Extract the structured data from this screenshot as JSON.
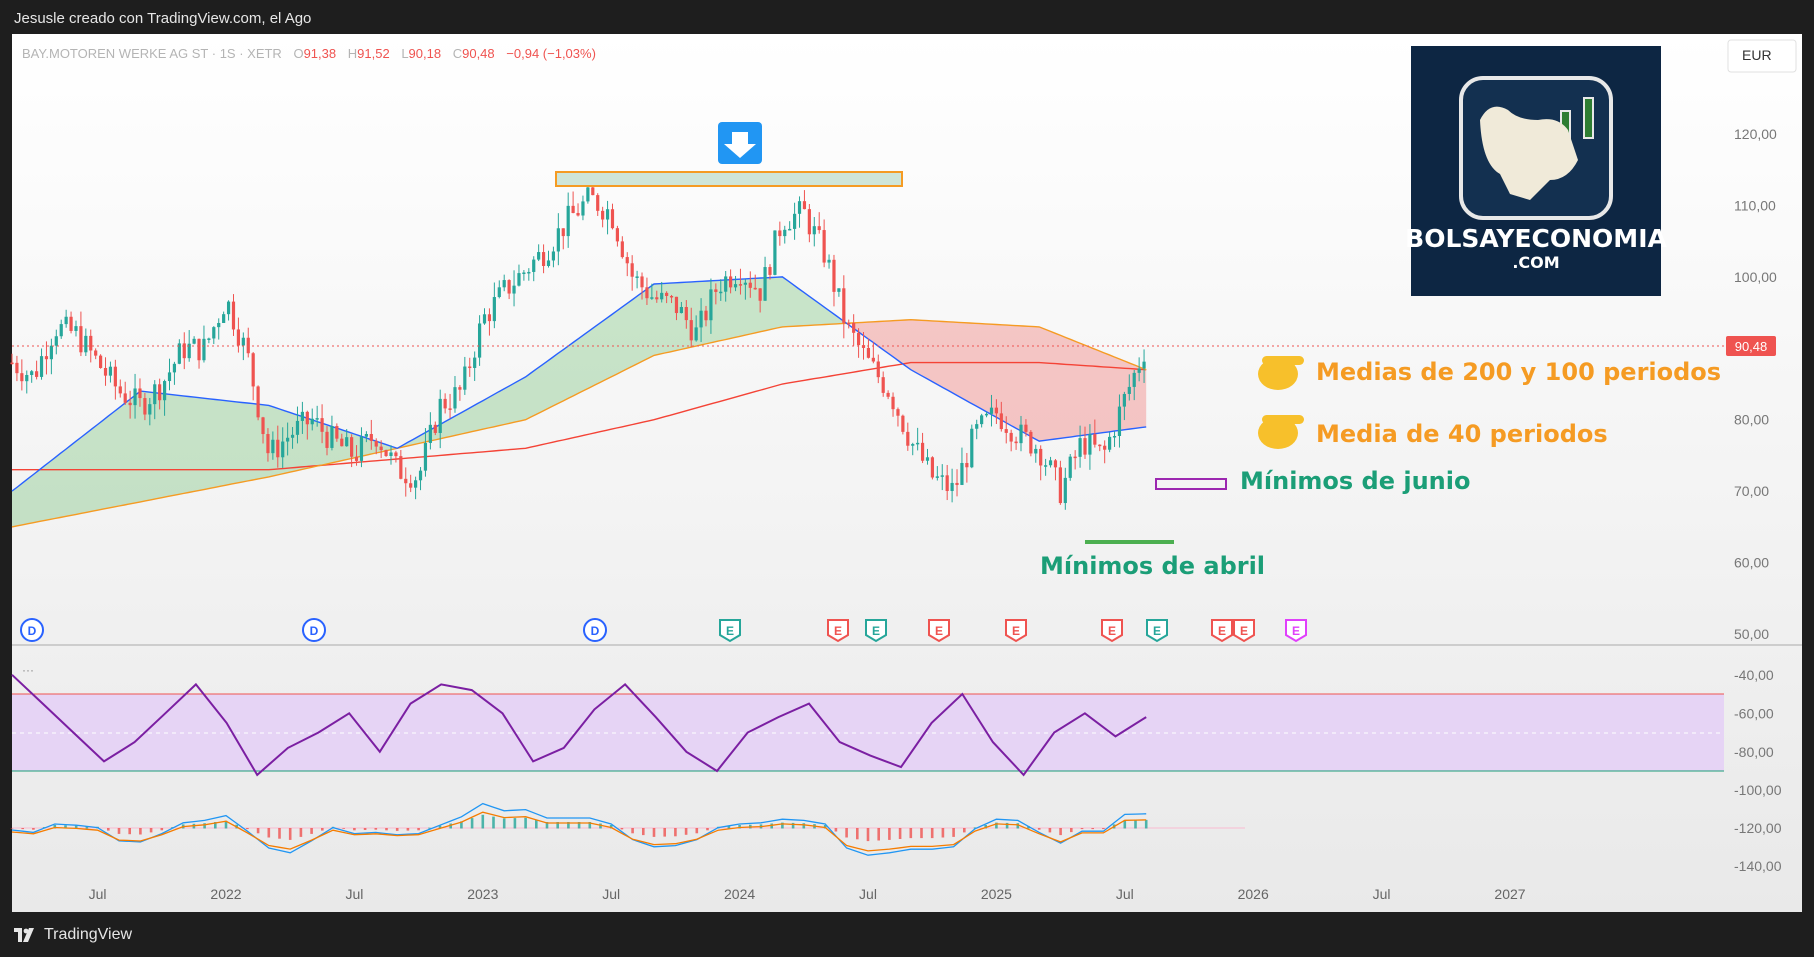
{
  "header": {
    "attribution": "Jesusle creado con TradingView.com, el Ago"
  },
  "footer": {
    "brand": "TradingView"
  },
  "instrument": {
    "name": "BAY.MOTOREN WERKE AG ST · 1S · XETR",
    "o_label": "O",
    "o": "91,38",
    "h_label": "H",
    "h": "91,52",
    "l_label": "L",
    "l": "90,18",
    "c_label": "C",
    "c": "90,48",
    "change": "−0,94 (−1,03%)",
    "currency": "EUR",
    "last_price": "90,48"
  },
  "logo": {
    "line1": "BOLSAYECONOMIA",
    "line2": ".COM"
  },
  "annotations": {
    "ma_long": "Medias de 200 y 100 periodos",
    "ma_short": "Media de 40 periodos",
    "june_lows": "Mínimos de junio",
    "april_lows": "Mínimos de abril"
  },
  "event_badges": [
    "D",
    "D",
    "D",
    "E",
    "E",
    "E",
    "E",
    "E",
    "E",
    "E",
    "E",
    "E",
    "E"
  ],
  "rsi_panel": {
    "dots": "···"
  },
  "colors": {
    "up": "#26a69a",
    "down": "#ef5350",
    "ma40": "#2962ff",
    "ma100": "#f59b23",
    "ma200": "#f44336",
    "rsi": "#7b1fa2",
    "rsi_band": "#e6d4f5",
    "green_note": "#1b9e77",
    "orange_note": "#f59b23"
  },
  "chart_data": [
    {
      "type": "candlestick",
      "title": "BAY.MOTOREN WERKE AG ST · 1S · XETR",
      "x_tick_labels": [
        "Jul",
        "2022",
        "Jul",
        "2023",
        "Jul",
        "2024",
        "Jul",
        "2025",
        "Jul",
        "2026",
        "Jul",
        "2027"
      ],
      "y_tick_labels": [
        "120,00",
        "110,00",
        "100,00",
        "90,00",
        "80,00",
        "70,00",
        "60,00",
        "50,00"
      ],
      "ylim": [
        50,
        127
      ],
      "x_range": [
        "2021-03",
        "2027-11"
      ],
      "close_path": [
        [
          "2021-03",
          88
        ],
        [
          "2021-04",
          86
        ],
        [
          "2021-05",
          93
        ],
        [
          "2021-06",
          92
        ],
        [
          "2021-07",
          88
        ],
        [
          "2021-08",
          84
        ],
        [
          "2021-09",
          82
        ],
        [
          "2021-10",
          85
        ],
        [
          "2021-11",
          90
        ],
        [
          "2021-12",
          90
        ],
        [
          "2022-01",
          97
        ],
        [
          "2022-02",
          89
        ],
        [
          "2022-03",
          75
        ],
        [
          "2022-04",
          78
        ],
        [
          "2022-05",
          80
        ],
        [
          "2022-06",
          77
        ],
        [
          "2022-07",
          75
        ],
        [
          "2022-08",
          78
        ],
        [
          "2022-09",
          73
        ],
        [
          "2022-10",
          72
        ],
        [
          "2022-11",
          82
        ],
        [
          "2022-12",
          84
        ],
        [
          "2023-01",
          94
        ],
        [
          "2023-02",
          98
        ],
        [
          "2023-03",
          101
        ],
        [
          "2023-04",
          104
        ],
        [
          "2023-05",
          108
        ],
        [
          "2023-06",
          111
        ],
        [
          "2023-07",
          109
        ],
        [
          "2023-08",
          100
        ],
        [
          "2023-09",
          97
        ],
        [
          "2023-10",
          96
        ],
        [
          "2023-11",
          92
        ],
        [
          "2023-12",
          99
        ],
        [
          "2024-01",
          101
        ],
        [
          "2024-02",
          98
        ],
        [
          "2024-03",
          108
        ],
        [
          "2024-04",
          109
        ],
        [
          "2024-05",
          103
        ],
        [
          "2024-06",
          93
        ],
        [
          "2024-07",
          88
        ],
        [
          "2024-08",
          84
        ],
        [
          "2024-09",
          77
        ],
        [
          "2024-10",
          72
        ],
        [
          "2024-11",
          70
        ],
        [
          "2024-12",
          78
        ],
        [
          "2025-01",
          81
        ],
        [
          "2025-02",
          78
        ],
        [
          "2025-03",
          76
        ],
        [
          "2025-04",
          70
        ],
        [
          "2025-05",
          77
        ],
        [
          "2025-06",
          75
        ],
        [
          "2025-07",
          83
        ],
        [
          "2025-08",
          90.48
        ]
      ],
      "ma_40": [
        [
          "2021-03",
          70
        ],
        [
          "2021-09",
          84
        ],
        [
          "2022-03",
          82
        ],
        [
          "2022-09",
          76
        ],
        [
          "2023-03",
          86
        ],
        [
          "2023-09",
          99
        ],
        [
          "2024-03",
          100
        ],
        [
          "2024-09",
          87
        ],
        [
          "2025-03",
          77
        ],
        [
          "2025-08",
          79
        ]
      ],
      "ma_100": [
        [
          "2021-03",
          65
        ],
        [
          "2022-03",
          72
        ],
        [
          "2023-03",
          80
        ],
        [
          "2023-09",
          89
        ],
        [
          "2024-03",
          93
        ],
        [
          "2024-09",
          94
        ],
        [
          "2025-03",
          93
        ],
        [
          "2025-08",
          87
        ]
      ],
      "ma_200": [
        [
          "2021-03",
          73
        ],
        [
          "2022-03",
          73
        ],
        [
          "2023-03",
          76
        ],
        [
          "2023-09",
          80
        ],
        [
          "2024-03",
          85
        ],
        [
          "2024-09",
          88
        ],
        [
          "2025-03",
          88
        ],
        [
          "2025-08",
          87
        ]
      ]
    },
    {
      "type": "line",
      "title": "",
      "y_tick_labels": [
        "-40,00",
        "-60,00",
        "-80,00"
      ],
      "ylim": [
        -95,
        -35
      ],
      "band": [
        -90,
        -50
      ],
      "values_sample": [
        -40,
        -55,
        -70,
        -85,
        -75,
        -60,
        -45,
        -65,
        -92,
        -78,
        -70,
        -60,
        -80,
        -55,
        -45,
        -48,
        -60,
        -85,
        -78,
        -58,
        -45,
        -62,
        -80,
        -90,
        -70,
        -62,
        -55,
        -75,
        -82,
        -88,
        -65,
        -50,
        -75,
        -92,
        -70,
        -60,
        -72,
        -62
      ]
    },
    {
      "type": "line",
      "title": "",
      "y_tick_labels": [
        "-100,00",
        "-120,00",
        "-140,00"
      ],
      "ylim": [
        -145,
        -95
      ]
    }
  ]
}
